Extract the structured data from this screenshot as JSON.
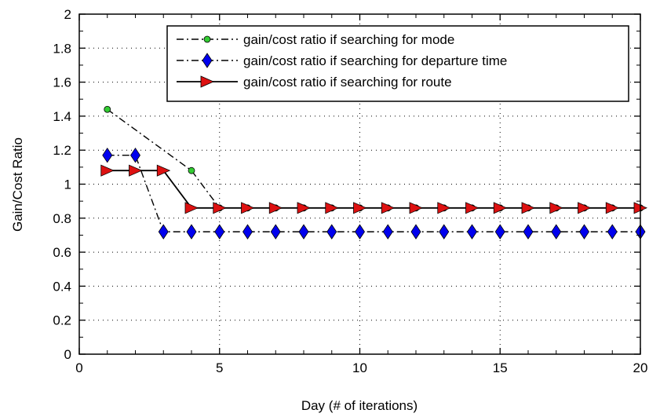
{
  "chart_data": {
    "type": "line",
    "title": "",
    "xlabel": "Day (# of iterations)",
    "ylabel": "Gain/Cost Ratio",
    "xlim": [
      0,
      20
    ],
    "ylim": [
      0,
      2
    ],
    "xticks": [
      0,
      5,
      10,
      15,
      20
    ],
    "yticks": [
      0,
      0.2,
      0.4,
      0.6,
      0.8,
      1,
      1.2,
      1.4,
      1.6,
      1.8,
      2
    ],
    "xtick_labels": [
      "0",
      "5",
      "10",
      "15",
      "20"
    ],
    "ytick_labels": [
      "0",
      "0.2",
      "0.4",
      "0.6",
      "0.8",
      "1",
      "1.2",
      "1.4",
      "1.6",
      "1.8",
      "2"
    ],
    "grid": true,
    "legend_position": "top-right",
    "series": [
      {
        "name": "gain/cost ratio if searching for mode",
        "line_style": "dash-dot",
        "marker": "circle",
        "color": "#33cc33",
        "x": [
          1,
          4,
          5,
          6,
          7,
          8,
          9,
          10,
          11,
          12,
          13,
          14,
          15,
          16,
          17,
          18,
          19,
          20
        ],
        "y": [
          1.44,
          1.08,
          0.86,
          0.86,
          0.86,
          0.86,
          0.86,
          0.86,
          0.86,
          0.86,
          0.86,
          0.86,
          0.86,
          0.86,
          0.86,
          0.86,
          0.86,
          0.86
        ]
      },
      {
        "name": "gain/cost ratio if searching for departure time",
        "line_style": "dash-dot",
        "marker": "diamond",
        "color": "#0000ee",
        "x": [
          1,
          2,
          3,
          4,
          5,
          6,
          7,
          8,
          9,
          10,
          11,
          12,
          13,
          14,
          15,
          16,
          17,
          18,
          19,
          20
        ],
        "y": [
          1.17,
          1.17,
          0.72,
          0.72,
          0.72,
          0.72,
          0.72,
          0.72,
          0.72,
          0.72,
          0.72,
          0.72,
          0.72,
          0.72,
          0.72,
          0.72,
          0.72,
          0.72,
          0.72,
          0.72
        ]
      },
      {
        "name": "gain/cost ratio if searching for route",
        "line_style": "solid",
        "marker": "triangle-right",
        "color": "#dd1111",
        "x": [
          1,
          2,
          3,
          4,
          5,
          6,
          7,
          8,
          9,
          10,
          11,
          12,
          13,
          14,
          15,
          16,
          17,
          18,
          19,
          20
        ],
        "y": [
          1.08,
          1.08,
          1.08,
          0.86,
          0.86,
          0.86,
          0.86,
          0.86,
          0.86,
          0.86,
          0.86,
          0.86,
          0.86,
          0.86,
          0.86,
          0.86,
          0.86,
          0.86,
          0.86,
          0.86
        ]
      }
    ]
  }
}
